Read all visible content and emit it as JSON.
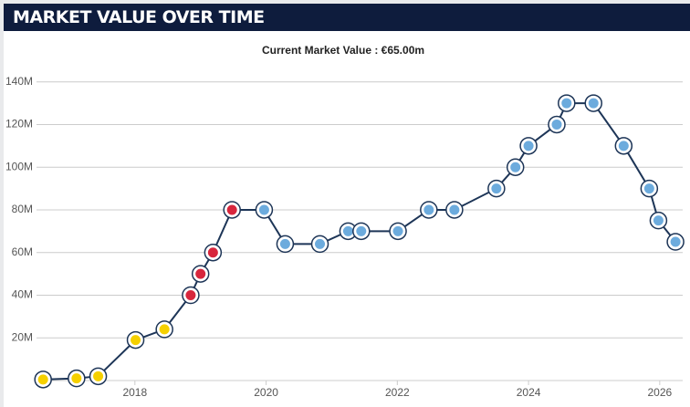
{
  "header": {
    "title": "MARKET VALUE OVER TIME"
  },
  "chart_data": {
    "type": "line",
    "subtitle": "Current Market Value : €65.00m",
    "x": [
      2016.6,
      2017.11,
      2017.44,
      2018.01,
      2018.45,
      2018.85,
      2019.0,
      2019.19,
      2019.48,
      2019.97,
      2020.29,
      2020.82,
      2021.25,
      2021.45,
      2022.01,
      2022.48,
      2022.87,
      2023.51,
      2023.8,
      2024.0,
      2024.43,
      2024.58,
      2024.99,
      2025.45,
      2025.84,
      2025.98,
      2026.24
    ],
    "series": [
      {
        "color": "#1d3557",
        "values": [
          0.5,
          1,
          2,
          19,
          24,
          40,
          50,
          60,
          80,
          80,
          64,
          64,
          70,
          70,
          70,
          80,
          80,
          90,
          100,
          110,
          120,
          130,
          130,
          110,
          90,
          75,
          65
        ],
        "marker_colors": [
          "#f5d000",
          "#f5d000",
          "#f5d000",
          "#f5d000",
          "#f5d000",
          "#d7263d",
          "#d7263d",
          "#d7263d",
          "#d7263d",
          "#6cabdd",
          "#6cabdd",
          "#6cabdd",
          "#6cabdd",
          "#6cabdd",
          "#6cabdd",
          "#6cabdd",
          "#6cabdd",
          "#6cabdd",
          "#6cabdd",
          "#6cabdd",
          "#6cabdd",
          "#6cabdd",
          "#6cabdd",
          "#6cabdd",
          "#6cabdd",
          "#6cabdd",
          "#6cabdd"
        ]
      }
    ],
    "xlim": [
      2016.5,
      2026.35
    ],
    "ylim": [
      0,
      145
    ],
    "xticks": [
      2018,
      2020,
      2022,
      2024,
      2026
    ],
    "yticks": [
      {
        "value": 20,
        "label": "20M"
      },
      {
        "value": 40,
        "label": "40M"
      },
      {
        "value": 60,
        "label": "60M"
      },
      {
        "value": 80,
        "label": "80M"
      },
      {
        "value": 100,
        "label": "100M"
      },
      {
        "value": 120,
        "label": "120M"
      },
      {
        "value": 140,
        "label": "140M"
      }
    ],
    "grid": true
  }
}
